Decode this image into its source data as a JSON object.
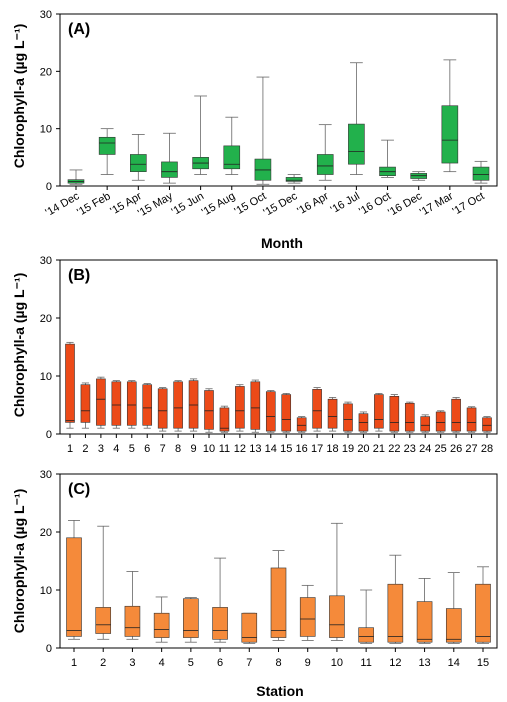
{
  "chart_data": [
    {
      "type": "box",
      "panel_label": "(A)",
      "ylabel": "Chlorophyll-a (µg L⁻¹)",
      "xlabel": "Month",
      "ylim": [
        0,
        30
      ],
      "yticks": [
        0,
        10,
        20,
        30
      ],
      "color": "#22b14c",
      "categories": [
        "'14 Dec",
        "'15 Feb",
        "'15 Apr",
        "'15 May",
        "'15 Jun",
        "'15 Aug",
        "'15 Oct",
        "'15 Dec",
        "'16 Apr",
        "'16 Jul",
        "'16 Oct",
        "'16 Dec",
        "'17 Mar",
        "'17 Oct"
      ],
      "boxes": [
        {
          "min": 0.3,
          "q1": 0.5,
          "median": 0.8,
          "q3": 1.1,
          "max": 2.8
        },
        {
          "min": 2.0,
          "q1": 5.5,
          "median": 7.5,
          "q3": 8.5,
          "max": 10.0
        },
        {
          "min": 1.0,
          "q1": 2.5,
          "median": 3.8,
          "q3": 5.5,
          "max": 9.0
        },
        {
          "min": 0.5,
          "q1": 1.5,
          "median": 2.5,
          "q3": 4.2,
          "max": 9.2
        },
        {
          "min": 2.0,
          "q1": 3.0,
          "median": 4.0,
          "q3": 5.0,
          "max": 15.7
        },
        {
          "min": 2.0,
          "q1": 3.0,
          "median": 3.8,
          "q3": 7.0,
          "max": 12.0
        },
        {
          "min": 0.3,
          "q1": 1.0,
          "median": 2.8,
          "q3": 4.7,
          "max": 19.0
        },
        {
          "min": 0.5,
          "q1": 0.8,
          "median": 1.0,
          "q3": 1.5,
          "max": 2.0
        },
        {
          "min": 1.0,
          "q1": 2.0,
          "median": 3.5,
          "q3": 5.5,
          "max": 10.7
        },
        {
          "min": 2.0,
          "q1": 3.8,
          "median": 6.0,
          "q3": 10.8,
          "max": 21.5
        },
        {
          "min": 1.5,
          "q1": 1.8,
          "median": 2.5,
          "q3": 3.3,
          "max": 8.0
        },
        {
          "min": 1.0,
          "q1": 1.3,
          "median": 1.8,
          "q3": 2.2,
          "max": 2.5
        },
        {
          "min": 2.5,
          "q1": 4.0,
          "median": 8.0,
          "q3": 14.0,
          "max": 22.0
        },
        {
          "min": 0.5,
          "q1": 1.0,
          "median": 2.0,
          "q3": 3.3,
          "max": 4.3
        }
      ]
    },
    {
      "type": "box",
      "panel_label": "(B)",
      "ylabel": "Chlorophyll-a (µg L⁻¹)",
      "xlabel": "",
      "ylim": [
        0,
        30
      ],
      "yticks": [
        0,
        10,
        20,
        30
      ],
      "color": "#ec4a18",
      "categories": [
        "1",
        "2",
        "3",
        "4",
        "5",
        "6",
        "7",
        "8",
        "9",
        "10",
        "11",
        "12",
        "13",
        "14",
        "15",
        "16",
        "17",
        "18",
        "19",
        "20",
        "21",
        "22",
        "23",
        "24",
        "25",
        "26",
        "27",
        "28"
      ],
      "boxes": [
        {
          "min": 1.0,
          "q1": 2.0,
          "median": 2.3,
          "q3": 15.5,
          "max": 15.8
        },
        {
          "min": 1.0,
          "q1": 2.0,
          "median": 4.0,
          "q3": 8.5,
          "max": 8.8
        },
        {
          "min": 1.0,
          "q1": 1.5,
          "median": 6.0,
          "q3": 9.5,
          "max": 9.8
        },
        {
          "min": 1.0,
          "q1": 1.5,
          "median": 5.0,
          "q3": 9.0,
          "max": 9.2
        },
        {
          "min": 1.0,
          "q1": 1.5,
          "median": 5.0,
          "q3": 9.0,
          "max": 9.2
        },
        {
          "min": 1.0,
          "q1": 1.5,
          "median": 4.5,
          "q3": 8.5,
          "max": 8.7
        },
        {
          "min": 0.5,
          "q1": 1.0,
          "median": 4.0,
          "q3": 7.8,
          "max": 8.0
        },
        {
          "min": 0.5,
          "q1": 1.0,
          "median": 4.5,
          "q3": 9.0,
          "max": 9.2
        },
        {
          "min": 0.5,
          "q1": 1.0,
          "median": 5.0,
          "q3": 9.2,
          "max": 9.5
        },
        {
          "min": 0.3,
          "q1": 0.8,
          "median": 4.0,
          "q3": 7.5,
          "max": 7.8
        },
        {
          "min": 0.3,
          "q1": 0.5,
          "median": 1.0,
          "q3": 4.5,
          "max": 4.8
        },
        {
          "min": 0.5,
          "q1": 1.0,
          "median": 4.0,
          "q3": 8.2,
          "max": 8.5
        },
        {
          "min": 0.3,
          "q1": 0.8,
          "median": 4.5,
          "q3": 9.0,
          "max": 9.3
        },
        {
          "min": 0.3,
          "q1": 0.5,
          "median": 3.0,
          "q3": 7.3,
          "max": 7.5
        },
        {
          "min": 0.3,
          "q1": 0.5,
          "median": 2.5,
          "q3": 6.8,
          "max": 7.0
        },
        {
          "min": 0.3,
          "q1": 0.5,
          "median": 1.5,
          "q3": 2.8,
          "max": 3.0
        },
        {
          "min": 0.5,
          "q1": 1.0,
          "median": 4.0,
          "q3": 7.7,
          "max": 8.0
        },
        {
          "min": 0.5,
          "q1": 1.0,
          "median": 3.0,
          "q3": 6.0,
          "max": 6.3
        },
        {
          "min": 0.3,
          "q1": 0.5,
          "median": 2.5,
          "q3": 5.2,
          "max": 5.5
        },
        {
          "min": 0.3,
          "q1": 0.5,
          "median": 2.0,
          "q3": 3.5,
          "max": 3.8
        },
        {
          "min": 0.5,
          "q1": 1.0,
          "median": 2.5,
          "q3": 6.8,
          "max": 7.0
        },
        {
          "min": 0.3,
          "q1": 0.5,
          "median": 2.0,
          "q3": 6.5,
          "max": 6.8
        },
        {
          "min": 0.3,
          "q1": 0.5,
          "median": 2.0,
          "q3": 5.3,
          "max": 5.5
        },
        {
          "min": 0.3,
          "q1": 0.5,
          "median": 1.5,
          "q3": 3.0,
          "max": 3.3
        },
        {
          "min": 0.3,
          "q1": 0.5,
          "median": 2.0,
          "q3": 3.8,
          "max": 4.0
        },
        {
          "min": 0.3,
          "q1": 0.5,
          "median": 2.0,
          "q3": 6.0,
          "max": 6.3
        },
        {
          "min": 0.3,
          "q1": 0.5,
          "median": 2.0,
          "q3": 4.5,
          "max": 4.7
        },
        {
          "min": 0.3,
          "q1": 0.5,
          "median": 1.5,
          "q3": 2.8,
          "max": 3.0
        }
      ]
    },
    {
      "type": "box",
      "panel_label": "(C)",
      "ylabel": "Chlorophyll-a (µg L⁻¹)",
      "xlabel": "Station",
      "ylim": [
        0,
        30
      ],
      "yticks": [
        0,
        10,
        20,
        30
      ],
      "color": "#f58a3a",
      "categories": [
        "1",
        "2",
        "3",
        "4",
        "5",
        "6",
        "7",
        "8",
        "9",
        "10",
        "11",
        "12",
        "13",
        "14",
        "15"
      ],
      "boxes": [
        {
          "min": 1.5,
          "q1": 2.0,
          "median": 3.0,
          "q3": 19.0,
          "max": 22.0
        },
        {
          "min": 1.5,
          "q1": 2.5,
          "median": 4.0,
          "q3": 7.0,
          "max": 21.0
        },
        {
          "min": 1.5,
          "q1": 2.0,
          "median": 3.5,
          "q3": 7.2,
          "max": 13.2
        },
        {
          "min": 1.0,
          "q1": 1.8,
          "median": 3.2,
          "q3": 6.0,
          "max": 8.8
        },
        {
          "min": 1.0,
          "q1": 1.8,
          "median": 3.0,
          "q3": 8.5,
          "max": 8.7
        },
        {
          "min": 1.0,
          "q1": 1.5,
          "median": 3.0,
          "q3": 7.0,
          "max": 15.5
        },
        {
          "min": 0.8,
          "q1": 1.0,
          "median": 1.8,
          "q3": 6.0,
          "max": 6.0
        },
        {
          "min": 1.3,
          "q1": 1.8,
          "median": 3.0,
          "q3": 13.8,
          "max": 16.8
        },
        {
          "min": 1.3,
          "q1": 2.0,
          "median": 5.0,
          "q3": 8.7,
          "max": 10.8
        },
        {
          "min": 1.3,
          "q1": 1.8,
          "median": 4.0,
          "q3": 9.0,
          "max": 21.5
        },
        {
          "min": 0.8,
          "q1": 1.0,
          "median": 2.0,
          "q3": 3.5,
          "max": 10.0
        },
        {
          "min": 0.8,
          "q1": 1.0,
          "median": 2.0,
          "q3": 11.0,
          "max": 16.0
        },
        {
          "min": 0.8,
          "q1": 1.0,
          "median": 1.5,
          "q3": 8.0,
          "max": 12.0
        },
        {
          "min": 0.8,
          "q1": 1.0,
          "median": 1.5,
          "q3": 6.8,
          "max": 13.0
        },
        {
          "min": 0.8,
          "q1": 1.0,
          "median": 2.0,
          "q3": 11.0,
          "max": 14.0
        }
      ]
    }
  ]
}
